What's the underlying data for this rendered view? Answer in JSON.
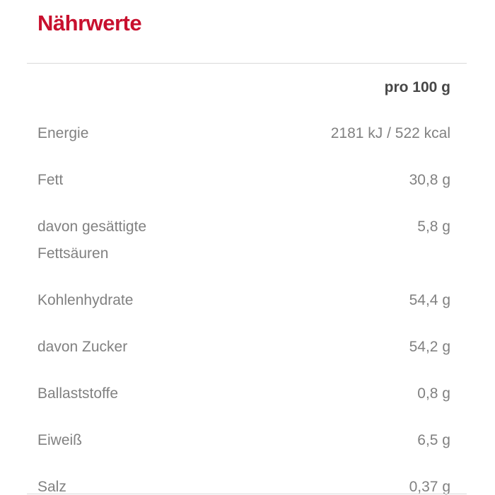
{
  "title": "Nährwerte",
  "colors": {
    "title_red": "#c8102e",
    "label_gray": "#818181",
    "header_gray": "#474747",
    "rule_gray": "#d9d9d9"
  },
  "table": {
    "column_header": "pro 100 g",
    "rows": [
      {
        "label": "Energie",
        "value": "2181 kJ / 522 kcal"
      },
      {
        "label": "Fett",
        "value": "30,8 g"
      },
      {
        "label": "davon gesättigte Fettsäuren",
        "value": "5,8 g"
      },
      {
        "label": "Kohlenhydrate",
        "value": "54,4 g"
      },
      {
        "label": "davon Zucker",
        "value": "54,2 g"
      },
      {
        "label": "Ballaststoffe",
        "value": "0,8 g"
      },
      {
        "label": "Eiweiß",
        "value": "6,5 g"
      },
      {
        "label": "Salz",
        "value": "0,37 g"
      }
    ]
  }
}
